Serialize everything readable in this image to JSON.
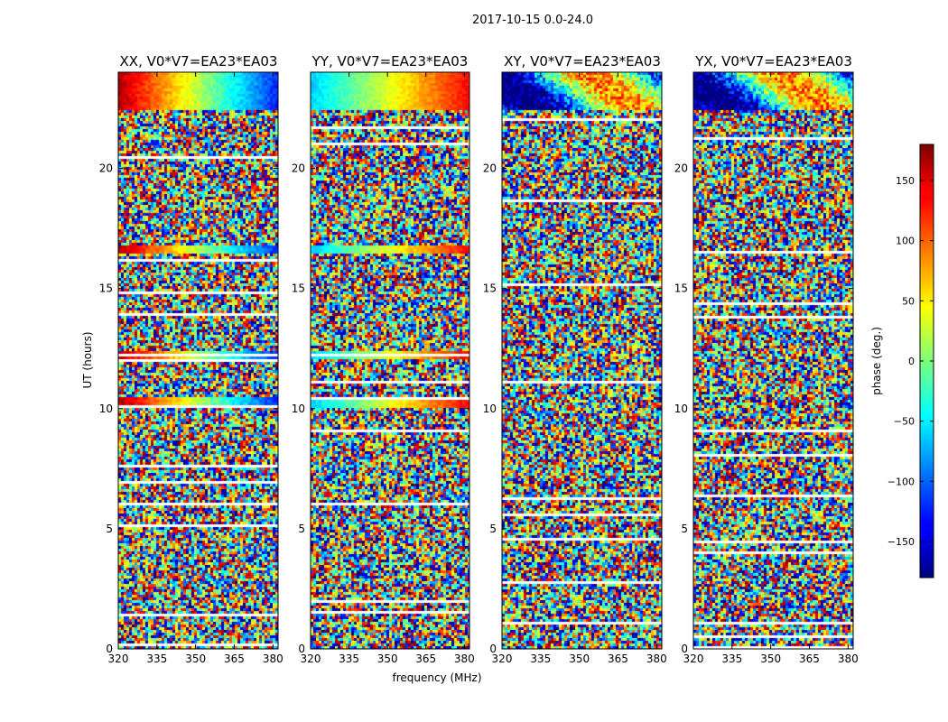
{
  "suptitle": "2017-10-15 0.0-24.0",
  "chart_data": {
    "type": "heatmap",
    "colormap": "jet",
    "panels": [
      {
        "title": "XX, V0*V7=EA23*EA03"
      },
      {
        "title": "YY, V0*V7=EA23*EA03"
      },
      {
        "title": "XY, V0*V7=EA23*EA03"
      },
      {
        "title": "YX, V0*V7=EA23*EA03"
      }
    ],
    "xlabel": "frequency (MHz)",
    "ylabel": "UT (hours)",
    "xlim": [
      320,
      382
    ],
    "ylim": [
      0,
      24
    ],
    "xticks": [
      "320",
      "335",
      "350",
      "365",
      "380"
    ],
    "xtick_values": [
      320,
      335,
      350,
      365,
      380
    ],
    "yticks": [
      "0",
      "5",
      "10",
      "15",
      "20"
    ],
    "ytick_values": [
      0,
      5,
      10,
      15,
      20
    ],
    "colorbar": {
      "label": "phase (deg.)",
      "range": [
        -180,
        180
      ],
      "ticks": [
        "−150",
        "−100",
        "−50",
        "0",
        "50",
        "100",
        "150"
      ],
      "tick_values": [
        -150,
        -100,
        -50,
        0,
        50,
        100,
        150
      ]
    },
    "structured_bands": [
      {
        "ut": [
          22.5,
          24.0
        ],
        "XX": "red at low frequency to blue at high frequency",
        "YY": "cyan/green at low frequency to orange/red at high frequency"
      },
      {
        "ut": [
          16.5,
          16.8
        ],
        "XX": "red to blue",
        "YY": "cyan to yellow/orange"
      },
      {
        "ut": [
          12.1,
          12.4
        ],
        "XX": "red to blue",
        "YY": "cyan to yellow"
      },
      {
        "ut": [
          10.1,
          10.5
        ],
        "XX": "red to blue",
        "YY": "cyan to yellow"
      }
    ]
  }
}
